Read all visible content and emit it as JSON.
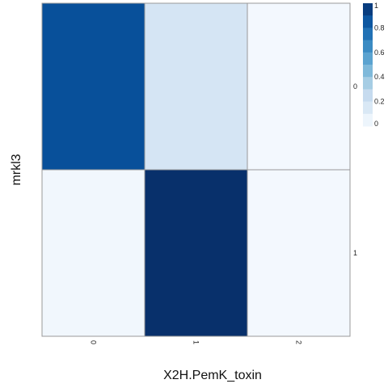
{
  "chart_data": {
    "type": "heatmap",
    "xlabel": "X2H.PemK_toxin",
    "ylabel": "mrkl3",
    "x_categories": [
      "0",
      "1",
      "2"
    ],
    "y_categories": [
      "0",
      "1"
    ],
    "values": [
      [
        0.88,
        0.17,
        0.02
      ],
      [
        0.03,
        1.0,
        0.02
      ]
    ],
    "colorbar": {
      "min": 0,
      "max": 1,
      "ticks": [
        "0",
        "0.2",
        "0.4",
        "0.6",
        "0.8",
        "1"
      ]
    },
    "colors": {
      "scale": [
        "#f7fbff",
        "#deebf7",
        "#c6dbef",
        "#9ecae1",
        "#6baed6",
        "#4292c6",
        "#2171b5",
        "#08519c",
        "#08306b"
      ],
      "cell_border": "#999999"
    },
    "grid": false,
    "legend": "right"
  }
}
